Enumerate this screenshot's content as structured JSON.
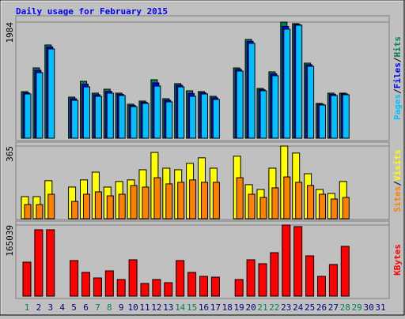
{
  "chart_data": [
    {
      "type": "bar",
      "title": "Daily usage for February 2015",
      "ylim": [
        0,
        1984
      ],
      "yticks": [
        1984
      ],
      "grid": true,
      "legend_separator": "/",
      "legend_order": [
        2,
        1,
        0
      ],
      "series": [
        {
          "name": "Hits",
          "color": "#00805c",
          "values": [
            796,
            1201,
            1593,
            0,
            702,
            972,
            770,
            837,
            770,
            581,
            635,
            999,
            675,
            932,
            810,
            797,
            716,
            0,
            1201,
            1688,
            851,
            1134,
            1984,
            1958,
            1283,
            594,
            770,
            770,
            0,
            0,
            0
          ]
        },
        {
          "name": "Files",
          "color": "#0000ff",
          "values": [
            776,
            1160,
            1560,
            0,
            675,
            925,
            743,
            800,
            750,
            560,
            615,
            945,
            648,
            905,
            765,
            776,
            690,
            0,
            1175,
            1655,
            830,
            1100,
            1910,
            1945,
            1255,
            580,
            750,
            757,
            0,
            0,
            0
          ]
        },
        {
          "name": "Pages",
          "color": "#00c0ff",
          "values": [
            756,
            1120,
            1525,
            0,
            648,
            877,
            716,
            770,
            729,
            540,
            594,
            891,
            621,
            877,
            716,
            756,
            662,
            0,
            1148,
            1620,
            810,
            1067,
            1863,
            1931,
            1229,
            567,
            729,
            743,
            0,
            0,
            0
          ]
        }
      ]
    },
    {
      "type": "bar",
      "ylim": [
        0,
        365
      ],
      "yticks": [
        365
      ],
      "grid": true,
      "legend_separator": "/",
      "legend_order": [
        1,
        0
      ],
      "series": [
        {
          "name": "Visits",
          "color": "#ffff00",
          "values": [
            111,
            111,
            191,
            0,
            159,
            195,
            234,
            159,
            187,
            195,
            246,
            333,
            254,
            246,
            278,
            306,
            254,
            0,
            314,
            171,
            147,
            254,
            365,
            330,
            226,
            147,
            127,
            187,
            0,
            0,
            0
          ]
        },
        {
          "name": "Sites",
          "color": "#ff8000",
          "values": [
            71,
            71,
            123,
            0,
            87,
            123,
            135,
            115,
            123,
            167,
            159,
            206,
            175,
            183,
            195,
            183,
            183,
            0,
            206,
            123,
            107,
            155,
            210,
            183,
            167,
            123,
            99,
            107,
            0,
            0,
            0
          ]
        }
      ]
    },
    {
      "type": "bar",
      "ylim": [
        0,
        165039
      ],
      "yticks": [
        165039
      ],
      "grid": true,
      "legend_order": [
        0
      ],
      "series": [
        {
          "name": "KBytes",
          "color": "#ff0000",
          "values": [
            78862,
            154056,
            154056,
            0,
            82530,
            55020,
            42182,
            58688,
            38514,
            84364,
            29344,
            38514,
            31178,
            82530,
            55020,
            45850,
            44016,
            0,
            38514,
            84364,
            75194,
            100870,
            165039,
            161392,
            93534,
            45850,
            73360,
            115542,
            0,
            0,
            0
          ]
        }
      ],
      "categories": [
        "1",
        "2",
        "3",
        "4",
        "5",
        "6",
        "7",
        "8",
        "9",
        "10",
        "11",
        "12",
        "13",
        "14",
        "15",
        "16",
        "17",
        "18",
        "19",
        "20",
        "21",
        "22",
        "23",
        "24",
        "25",
        "26",
        "27",
        "28",
        "29",
        "30",
        "31"
      ],
      "category_color": "#000080",
      "highlight_color": "#00805c",
      "highlight": [
        0,
        6,
        7,
        13,
        14,
        20,
        21,
        27,
        28
      ]
    }
  ]
}
